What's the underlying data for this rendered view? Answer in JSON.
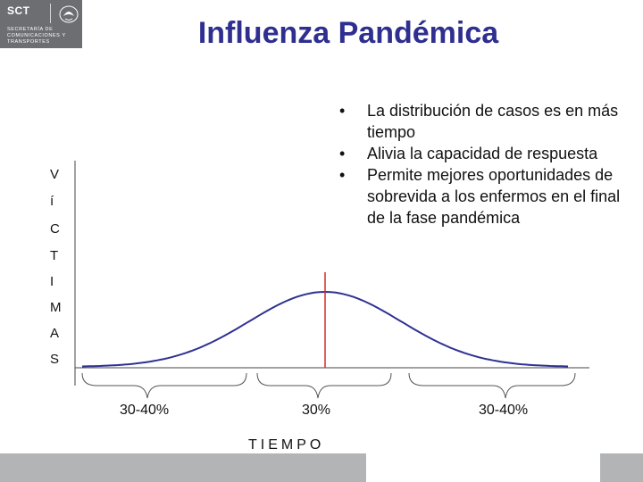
{
  "header": {
    "logo_text": "SCT",
    "logo_subtitle": "SECRETARÍA DE COMUNICACIONES Y TRANSPORTES",
    "title": "Influenza Pandémica"
  },
  "bullets": [
    "La distribución de casos es en más tiempo",
    "Alivia la capacidad de respuesta",
    "Permite mejores oportunidades de sobrevida a los enfermos en el final de la fase pandémica"
  ],
  "y_axis_letters": [
    "V",
    "í",
    "C",
    "T",
    "I",
    "M",
    "A",
    "S"
  ],
  "x_axis_title": "TIEMPO",
  "segments": [
    {
      "label": "30-40%"
    },
    {
      "label": "30%"
    },
    {
      "label": "30-40%"
    }
  ],
  "colors": {
    "title": "#2e2f8f",
    "curve": "#2f3192",
    "peak_line": "#d42a2a",
    "footer": "#b3b4b6",
    "logo_bg": "#6d6e71"
  }
}
